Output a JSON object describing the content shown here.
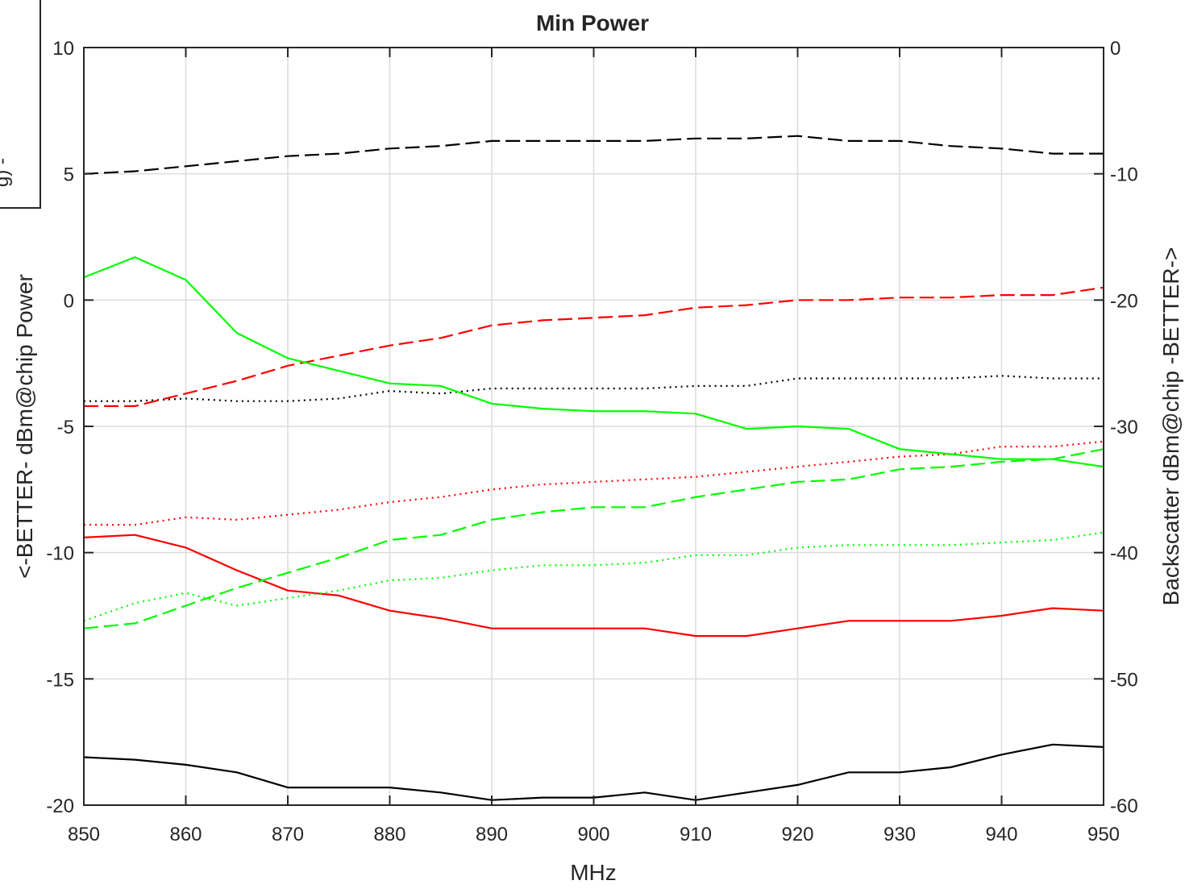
{
  "chart_data": {
    "type": "line",
    "title": "Min Power",
    "xlabel": "MHz",
    "ylabel_left": "<-BETTER- dBm@chip Power",
    "ylabel_right": "Backscatter dBm@chip -BETTER->",
    "xlim": [
      850,
      950
    ],
    "ylim_left": [
      -20,
      10
    ],
    "ylim_right": [
      -60,
      0
    ],
    "x_ticks": [
      "850",
      "860",
      "870",
      "880",
      "890",
      "900",
      "910",
      "920",
      "930",
      "940",
      "950"
    ],
    "y_ticks_left": [
      "10",
      "5",
      "0",
      "-5",
      "-10",
      "-15",
      "-20"
    ],
    "y_ticks_right": [
      "0",
      "-10",
      "-20",
      "-30",
      "-40",
      "-50",
      "-60"
    ],
    "grid": true,
    "legend_fragment": "g) -",
    "x": [
      850,
      855,
      860,
      865,
      870,
      875,
      880,
      885,
      890,
      895,
      900,
      905,
      910,
      915,
      920,
      925,
      930,
      935,
      940,
      945,
      950
    ],
    "series": [
      {
        "axis": "left",
        "color": "#000000",
        "dash": "dashed",
        "values": [
          5.0,
          5.1,
          5.3,
          5.5,
          5.7,
          5.8,
          6.0,
          6.1,
          6.3,
          6.3,
          6.3,
          6.3,
          6.4,
          6.4,
          6.5,
          6.3,
          6.3,
          6.1,
          6.0,
          5.8,
          5.8
        ]
      },
      {
        "axis": "left",
        "color": "#000000",
        "dash": "dotted",
        "values": [
          -4.0,
          -4.0,
          -3.9,
          -4.0,
          -4.0,
          -3.9,
          -3.6,
          -3.7,
          -3.5,
          -3.5,
          -3.5,
          -3.5,
          -3.4,
          -3.4,
          -3.1,
          -3.1,
          -3.1,
          -3.1,
          -3.0,
          -3.1,
          -3.1
        ]
      },
      {
        "axis": "left",
        "color": "#000000",
        "dash": "solid",
        "values": [
          -18.1,
          -18.2,
          -18.4,
          -18.7,
          -19.3,
          -19.3,
          -19.3,
          -19.5,
          -19.8,
          -19.7,
          -19.7,
          -19.5,
          -19.8,
          -19.5,
          -19.2,
          -18.7,
          -18.7,
          -18.5,
          -18.0,
          -17.6,
          -17.7
        ]
      },
      {
        "axis": "left",
        "color": "#ff0000",
        "dash": "dashed",
        "values": [
          -4.2,
          -4.2,
          -3.7,
          -3.2,
          -2.6,
          -2.2,
          -1.8,
          -1.5,
          -1.0,
          -0.8,
          -0.7,
          -0.6,
          -0.3,
          -0.2,
          0.0,
          0.0,
          0.1,
          0.1,
          0.2,
          0.2,
          0.5
        ]
      },
      {
        "axis": "left",
        "color": "#ff0000",
        "dash": "dotted",
        "values": [
          -8.9,
          -8.9,
          -8.6,
          -8.7,
          -8.5,
          -8.3,
          -8.0,
          -7.8,
          -7.5,
          -7.3,
          -7.2,
          -7.1,
          -7.0,
          -6.8,
          -6.6,
          -6.4,
          -6.2,
          -6.1,
          -5.8,
          -5.8,
          -5.6
        ]
      },
      {
        "axis": "left",
        "color": "#ff0000",
        "dash": "solid",
        "values": [
          -9.4,
          -9.3,
          -9.8,
          -10.7,
          -11.5,
          -11.7,
          -12.3,
          -12.6,
          -13.0,
          -13.0,
          -13.0,
          -13.0,
          -13.3,
          -13.3,
          -13.0,
          -12.7,
          -12.7,
          -12.7,
          -12.5,
          -12.2,
          -12.3
        ]
      },
      {
        "axis": "left",
        "color": "#00ff00",
        "dash": "solid",
        "values": [
          0.9,
          1.7,
          0.8,
          -1.3,
          -2.3,
          -2.8,
          -3.3,
          -3.4,
          -4.1,
          -4.3,
          -4.4,
          -4.4,
          -4.5,
          -5.1,
          -5.0,
          -5.1,
          -5.9,
          -6.1,
          -6.3,
          -6.3,
          -6.6
        ]
      },
      {
        "axis": "left",
        "color": "#00ff00",
        "dash": "dashed",
        "values": [
          -13.0,
          -12.8,
          -12.1,
          -11.4,
          -10.8,
          -10.2,
          -9.5,
          -9.3,
          -8.7,
          -8.4,
          -8.2,
          -8.2,
          -7.8,
          -7.5,
          -7.2,
          -7.1,
          -6.7,
          -6.6,
          -6.4,
          -6.3,
          -5.9
        ]
      },
      {
        "axis": "left",
        "color": "#00ff00",
        "dash": "dotted",
        "values": [
          -12.7,
          -12.0,
          -11.6,
          -12.1,
          -11.8,
          -11.5,
          -11.1,
          -11.0,
          -10.7,
          -10.5,
          -10.5,
          -10.4,
          -10.1,
          -10.1,
          -9.8,
          -9.7,
          -9.7,
          -9.7,
          -9.6,
          -9.5,
          -9.2
        ]
      }
    ]
  }
}
